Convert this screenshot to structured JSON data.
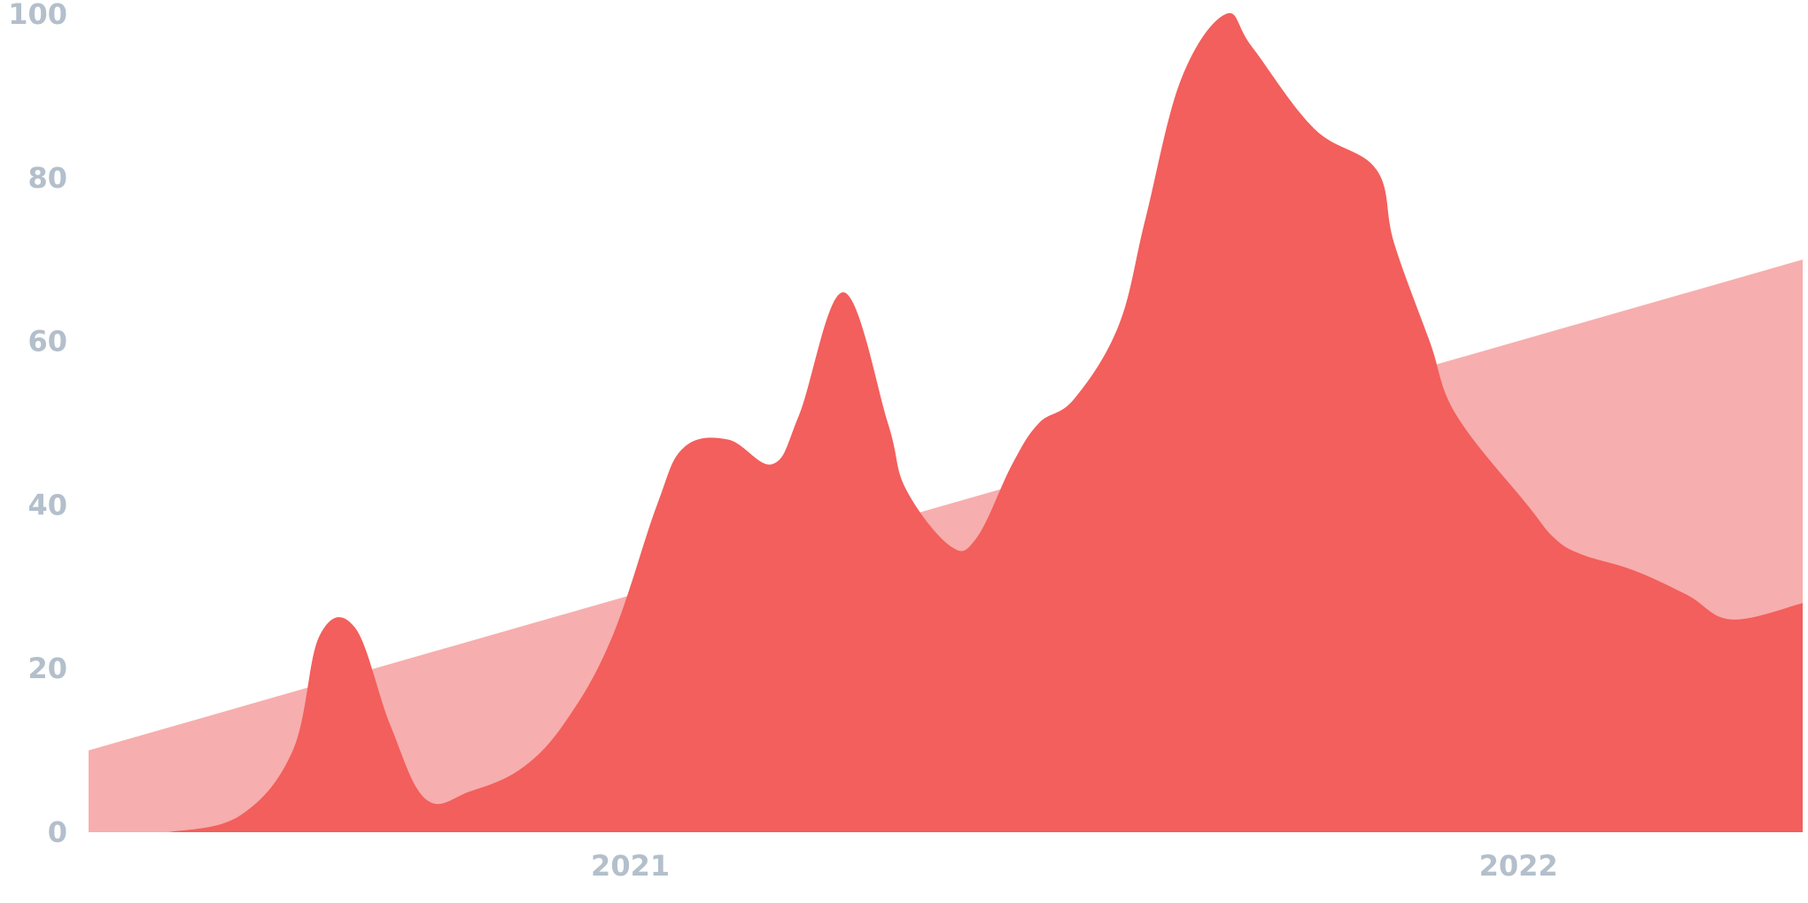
{
  "chart_data": {
    "type": "area",
    "title": "",
    "xlabel": "",
    "ylabel": "",
    "ylim": [
      0,
      100
    ],
    "y_ticks": [
      "0",
      "20",
      "40",
      "60",
      "80",
      "100"
    ],
    "x_ticks": [
      {
        "label": "2021",
        "value": 2021.0
      },
      {
        "label": "2022",
        "value": 2022.0
      }
    ],
    "grid": false,
    "legend": "none",
    "colors": {
      "trend": "#f7aeae",
      "series": "#f25f5c",
      "tick_text": "#b3bfcb"
    },
    "series": [
      {
        "key": "trend",
        "x": [
          2020.39,
          2022.32
        ],
        "y": [
          10,
          70
        ]
      },
      {
        "key": "main",
        "x": [
          2020.48,
          2020.56,
          2020.62,
          2020.65,
          2020.69,
          2020.73,
          2020.77,
          2020.82,
          2020.88,
          2020.93,
          2020.98,
          2021.03,
          2021.06,
          2021.11,
          2021.16,
          2021.19,
          2021.24,
          2021.29,
          2021.31,
          2021.36,
          2021.39,
          2021.43,
          2021.46,
          2021.5,
          2021.55,
          2021.58,
          2021.62,
          2021.67,
          2021.7,
          2021.77,
          2021.84,
          2021.86,
          2021.9,
          2021.93,
          2022.01,
          2022.04,
          2022.07,
          2022.13,
          2022.19,
          2022.24,
          2022.32
        ],
        "y": [
          0,
          2,
          10,
          24,
          25,
          13,
          4,
          5,
          8,
          14,
          24,
          40,
          47,
          48,
          45,
          51,
          66,
          50,
          42,
          35,
          36,
          45,
          50,
          53,
          62,
          75,
          92,
          100,
          96,
          86,
          81,
          72,
          60,
          51,
          40,
          36,
          34,
          32,
          29,
          26,
          28
        ]
      }
    ]
  }
}
